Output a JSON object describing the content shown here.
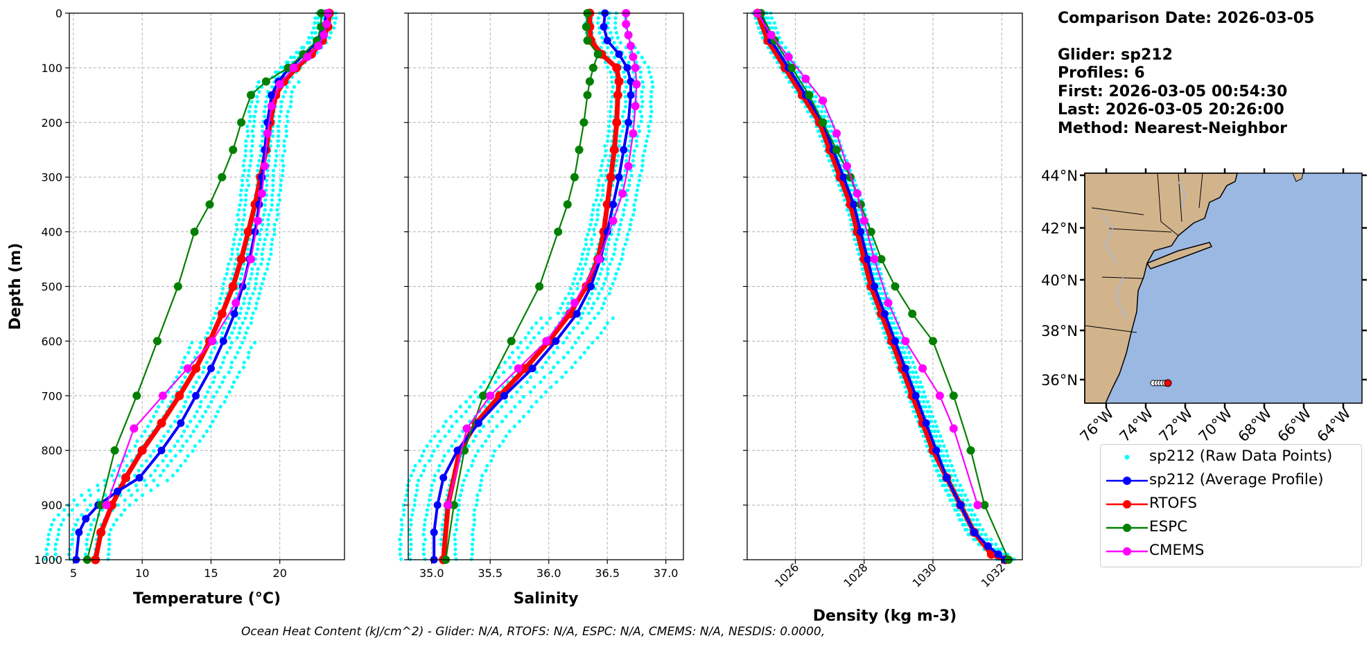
{
  "footer": "Ocean Heat Content (kJ/cm^2) - Glider: N/A,  RTOFS: N/A,  ESPC: N/A,  CMEMS: N/A,  NESDIS: 0.0000,",
  "info": {
    "comparison_date": "Comparison Date: 2026-03-05",
    "glider": "Glider: sp212",
    "profiles": "Profiles: 6",
    "first": "First: 2026-03-05 00:54:30",
    "last": "Last: 2026-03-05 20:26:00",
    "method": "Method: Nearest-Neighbor"
  },
  "legend": [
    {
      "label": "sp212 (Raw Data Points)",
      "color": "#00ffff",
      "style": "points"
    },
    {
      "label": "sp212 (Average Profile)",
      "color": "#0000ff",
      "style": "line-marker"
    },
    {
      "label": "RTOFS",
      "color": "#ff0000",
      "style": "line-marker"
    },
    {
      "label": "ESPC",
      "color": "#008000",
      "style": "line-marker"
    },
    {
      "label": "CMEMS",
      "color": "#ff00ff",
      "style": "line-marker"
    }
  ],
  "colors": {
    "raw": "#00ffff",
    "avg": "#0000ff",
    "rtofs": "#ff0000",
    "espc": "#008000",
    "cmems": "#ff00ff",
    "land": "#d2b48c",
    "ocean": "#9bb8e3"
  },
  "chart_data": [
    {
      "type": "line",
      "xlabel": "Temperature (°C)",
      "ylabel": "Depth (m)",
      "xlim": [
        4.7,
        24.7
      ],
      "ylim": [
        1000,
        0
      ],
      "x_ticks": [
        5,
        10,
        15,
        20
      ],
      "y_ticks": [
        0,
        100,
        200,
        300,
        400,
        500,
        600,
        700,
        800,
        900,
        1000
      ],
      "grid": true,
      "series": [
        {
          "name": "sp212 (Average Profile)",
          "x": [
            23.4,
            23.2,
            22.8,
            21.8,
            20.7,
            19.9,
            19.4,
            19.1,
            18.9,
            18.7,
            18.5,
            18.2,
            17.8,
            17.3,
            16.7,
            15.9,
            15.0,
            13.9,
            12.8,
            11.4,
            9.8,
            8.2,
            6.8,
            5.9,
            5.4,
            5.2
          ],
          "y": [
            0,
            25,
            50,
            75,
            100,
            125,
            150,
            200,
            250,
            300,
            350,
            400,
            450,
            500,
            550,
            600,
            650,
            700,
            750,
            800,
            850,
            875,
            900,
            925,
            950,
            1000
          ]
        },
        {
          "name": "RTOFS",
          "x": [
            23.6,
            23.5,
            23.1,
            22.3,
            21.2,
            20.3,
            19.7,
            19.3,
            19.0,
            18.6,
            18.2,
            17.7,
            17.2,
            16.6,
            15.8,
            14.9,
            13.9,
            12.7,
            11.4,
            10.0,
            8.8,
            7.8,
            7.0,
            6.6
          ],
          "y": [
            0,
            25,
            50,
            75,
            100,
            125,
            150,
            200,
            250,
            300,
            350,
            400,
            450,
            500,
            550,
            600,
            650,
            700,
            750,
            800,
            850,
            900,
            950,
            1000
          ]
        },
        {
          "name": "ESPC",
          "x": [
            23.0,
            23.0,
            22.7,
            21.7,
            20.6,
            19.0,
            17.9,
            17.2,
            16.6,
            15.8,
            14.9,
            13.8,
            12.6,
            11.1,
            9.6,
            8.0,
            7.0,
            6.0
          ],
          "y": [
            0,
            25,
            50,
            75,
            100,
            125,
            150,
            200,
            250,
            300,
            350,
            400,
            500,
            600,
            700,
            800,
            900,
            1000
          ]
        },
        {
          "name": "CMEMS",
          "x": [
            23.5,
            23.4,
            23.2,
            22.8,
            22.0,
            21.0,
            20.0,
            19.4,
            19.1,
            18.9,
            18.7,
            18.4,
            17.9,
            16.8,
            15.1,
            13.3,
            11.5,
            9.4,
            7.4
          ],
          "y": [
            0,
            20,
            40,
            60,
            80,
            100,
            130,
            170,
            220,
            280,
            330,
            380,
            450,
            530,
            600,
            650,
            700,
            760,
            900
          ]
        }
      ]
    },
    {
      "type": "line",
      "xlabel": "Salinity",
      "xlim": [
        34.8,
        37.15
      ],
      "ylim": [
        1000,
        0
      ],
      "x_ticks": [
        35.0,
        35.5,
        36.0,
        36.5,
        37.0
      ],
      "grid": true,
      "series": [
        {
          "name": "sp212 (Average Profile)",
          "x": [
            36.48,
            36.47,
            36.5,
            36.6,
            36.67,
            36.7,
            36.7,
            36.68,
            36.64,
            36.6,
            36.55,
            36.5,
            36.44,
            36.36,
            36.24,
            36.06,
            35.86,
            35.62,
            35.4,
            35.22,
            35.1,
            35.05,
            35.02,
            35.02
          ],
          "y": [
            0,
            25,
            50,
            75,
            100,
            125,
            150,
            200,
            250,
            300,
            350,
            400,
            450,
            500,
            550,
            600,
            650,
            700,
            750,
            800,
            850,
            900,
            950,
            1000
          ]
        },
        {
          "name": "RTOFS",
          "x": [
            36.35,
            36.35,
            36.36,
            36.45,
            36.58,
            36.6,
            36.59,
            36.58,
            36.56,
            36.53,
            36.5,
            36.47,
            36.42,
            36.32,
            36.18,
            36.0,
            35.8,
            35.58,
            35.38,
            35.24,
            35.14,
            35.1
          ],
          "y": [
            0,
            25,
            50,
            75,
            100,
            125,
            150,
            200,
            250,
            300,
            350,
            400,
            450,
            500,
            550,
            600,
            650,
            700,
            750,
            800,
            900,
            1000
          ]
        },
        {
          "name": "ESPC",
          "x": [
            36.33,
            36.32,
            36.33,
            36.42,
            36.38,
            36.35,
            36.33,
            36.3,
            36.26,
            36.22,
            36.16,
            36.08,
            35.92,
            35.68,
            35.44,
            35.28,
            35.19,
            35.12
          ],
          "y": [
            0,
            25,
            50,
            75,
            100,
            125,
            150,
            200,
            250,
            300,
            350,
            400,
            500,
            600,
            700,
            800,
            900,
            1000
          ]
        },
        {
          "name": "CMEMS",
          "x": [
            36.66,
            36.66,
            36.68,
            36.7,
            36.72,
            36.74,
            36.75,
            36.74,
            36.72,
            36.68,
            36.63,
            36.55,
            36.43,
            36.22,
            35.98,
            35.74,
            35.5,
            35.3,
            35.14
          ],
          "y": [
            0,
            20,
            40,
            60,
            80,
            100,
            130,
            170,
            220,
            280,
            330,
            380,
            450,
            530,
            600,
            650,
            700,
            760,
            900
          ]
        }
      ]
    },
    {
      "type": "line",
      "xlabel": "Density (kg m-3)",
      "xlim": [
        1024.6,
        1032.6
      ],
      "ylim": [
        1000,
        0
      ],
      "x_ticks": [
        1026,
        1028,
        1030,
        1032
      ],
      "grid": true,
      "series": [
        {
          "name": "sp212 (Average Profile)",
          "x": [
            1025.0,
            1025.3,
            1025.8,
            1026.3,
            1026.8,
            1027.1,
            1027.4,
            1027.7,
            1027.9,
            1028.1,
            1028.3,
            1028.6,
            1028.9,
            1029.2,
            1029.5,
            1029.8,
            1030.1,
            1030.4,
            1030.8,
            1031.2,
            1031.6,
            1031.9,
            1032.1
          ],
          "y": [
            0,
            50,
            100,
            150,
            200,
            250,
            300,
            350,
            400,
            450,
            500,
            550,
            600,
            650,
            700,
            750,
            800,
            850,
            900,
            950,
            975,
            990,
            1000
          ]
        },
        {
          "name": "RTOFS",
          "x": [
            1024.9,
            1025.2,
            1025.7,
            1026.2,
            1026.7,
            1027.0,
            1027.3,
            1027.6,
            1027.8,
            1028.0,
            1028.2,
            1028.5,
            1028.8,
            1029.1,
            1029.4,
            1029.7,
            1030.0,
            1030.4,
            1030.8,
            1031.2,
            1031.7,
            1032.1
          ],
          "y": [
            0,
            50,
            100,
            150,
            200,
            250,
            300,
            350,
            400,
            450,
            500,
            550,
            600,
            650,
            700,
            750,
            800,
            850,
            900,
            950,
            990,
            1000
          ]
        },
        {
          "name": "ESPC",
          "x": [
            1025.0,
            1025.4,
            1025.9,
            1026.4,
            1026.8,
            1027.2,
            1027.6,
            1027.9,
            1028.2,
            1028.5,
            1028.9,
            1029.4,
            1030.0,
            1030.6,
            1031.1,
            1031.5,
            1032.2
          ],
          "y": [
            0,
            50,
            100,
            150,
            200,
            250,
            300,
            350,
            400,
            450,
            500,
            550,
            600,
            700,
            800,
            900,
            1000
          ]
        },
        {
          "name": "CMEMS",
          "x": [
            1024.9,
            1025.3,
            1025.8,
            1026.3,
            1026.8,
            1027.2,
            1027.5,
            1027.8,
            1028.0,
            1028.3,
            1028.7,
            1029.2,
            1029.7,
            1030.2,
            1030.6,
            1031.3
          ],
          "y": [
            0,
            40,
            80,
            120,
            160,
            220,
            280,
            330,
            380,
            450,
            530,
            600,
            650,
            700,
            760,
            900
          ]
        }
      ]
    }
  ],
  "map": {
    "lat_ticks": [
      "44°N",
      "42°N",
      "40°N",
      "38°N",
      "36°N"
    ],
    "lon_ticks": [
      "76°W",
      "74°W",
      "72°W",
      "70°W",
      "68°W",
      "66°W",
      "64°W"
    ]
  }
}
